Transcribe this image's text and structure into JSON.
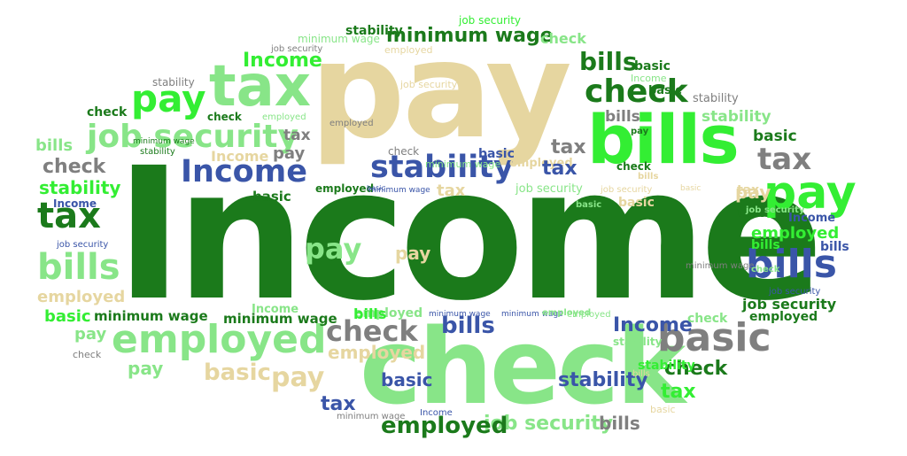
{
  "cloud": {
    "words": [
      "Income",
      "pay",
      "check",
      "bills",
      "tax",
      "pay",
      "job security",
      "employed",
      "check",
      "bills",
      "stability",
      "Income",
      "basic",
      "minimum wage",
      "check",
      "job security",
      "minimum wage",
      "check",
      "job security",
      "employed",
      "Income",
      "basic",
      "job security",
      "Income",
      "bills",
      "basic",
      "check",
      "bills",
      "stability",
      "stability",
      "tax",
      "check",
      "check",
      "employed",
      "job security",
      "bills",
      "stability",
      "tax",
      "pay",
      "Income",
      "pay",
      "tax",
      "basic",
      "stability",
      "basic",
      "employed",
      "minimum wage",
      "tax",
      "check",
      "tax",
      "check",
      "stability",
      "tax",
      "Income",
      "job security",
      "bills",
      "employed",
      "minimum wage",
      "pay",
      "job security",
      "tax",
      "basic",
      "basic",
      "tax",
      "pay",
      "Income",
      "employed",
      "pay",
      "bills",
      "job security",
      "bills",
      "job security",
      "basic",
      "pay",
      "employed",
      "minimum wage",
      "employed",
      "job security",
      "employed",
      "basic",
      "minimum wage",
      "minimum wage",
      "Income",
      "minimum wage",
      "minimum wage",
      "employed",
      "bills",
      "Income",
      "check",
      "employed",
      "bills",
      "basic",
      "pay",
      "employed",
      "pay",
      "check",
      "stability",
      "check",
      "stability",
      "tax",
      "basic",
      "bills",
      "tax",
      "bills",
      "basic",
      "employed",
      "Income",
      "minimum wage",
      "stability",
      "job security",
      "basic",
      "bills",
      "pay",
      "basic",
      "check",
      "minimum wage",
      "employed",
      "stability",
      "stability",
      "check"
    ]
  }
}
